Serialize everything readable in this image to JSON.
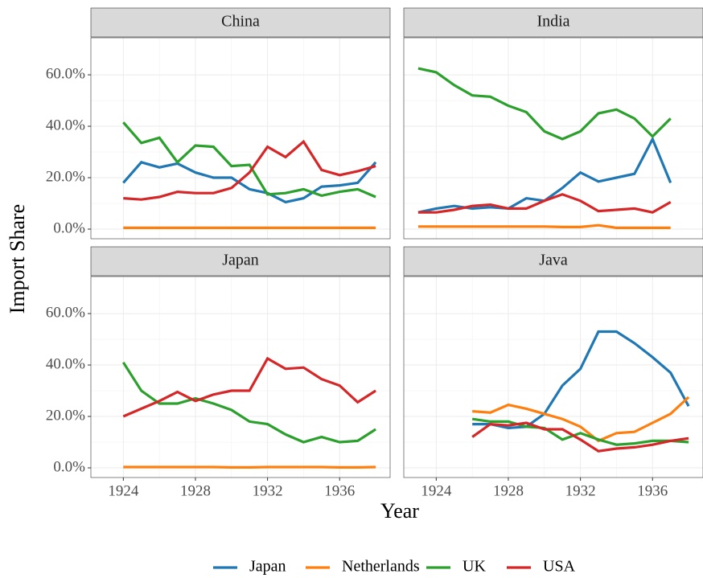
{
  "chart_data": {
    "type": "line",
    "xlabel": "Year",
    "ylabel": "Import Share",
    "xlim": [
      1922.2,
      1938.8
    ],
    "xticks": [
      1924,
      1928,
      1932,
      1936
    ],
    "ylim": [
      -3.75,
      74.4
    ],
    "yticks": [
      {
        "value": 0,
        "label": "0.0%"
      },
      {
        "value": 20,
        "label": "20.0%"
      },
      {
        "value": 40,
        "label": "40.0%"
      },
      {
        "value": 60,
        "label": "60.0%"
      }
    ],
    "grid": true,
    "legend": "bottom",
    "series": [
      {
        "name": "Japan",
        "color": "#1f77b4"
      },
      {
        "name": "Netherlands",
        "color": "#ff7f0e"
      },
      {
        "name": "UK",
        "color": "#2ca02c"
      },
      {
        "name": "USA",
        "color": "#d62728"
      }
    ],
    "panels": [
      {
        "title": "China",
        "x": [
          1924,
          1925,
          1926,
          1927,
          1928,
          1929,
          1930,
          1931,
          1932,
          1933,
          1934,
          1935,
          1936,
          1937,
          1938
        ],
        "values": [
          [
            18,
            26,
            24,
            25.5,
            22,
            20,
            20,
            15.5,
            14,
            10.5,
            12,
            16.5,
            17,
            18,
            26
          ],
          [
            0.5,
            0.5,
            0.5,
            0.5,
            0.5,
            0.5,
            0.5,
            0.5,
            0.5,
            0.5,
            0.5,
            0.5,
            0.5,
            0.5,
            0.5
          ],
          [
            41.5,
            33.5,
            35.5,
            26,
            32.5,
            32,
            24.5,
            25,
            13.5,
            14,
            15.5,
            13,
            14.5,
            15.5,
            12.5
          ],
          [
            12,
            11.5,
            12.5,
            14.5,
            14,
            14,
            16,
            22,
            32,
            28,
            34,
            23,
            21,
            22.5,
            24.5
          ]
        ]
      },
      {
        "title": "India",
        "x": [
          1923,
          1924,
          1925,
          1926,
          1927,
          1928,
          1929,
          1930,
          1931,
          1932,
          1933,
          1934,
          1935,
          1936,
          1937
        ],
        "values": [
          [
            6.5,
            8,
            9,
            8,
            8.5,
            8,
            12,
            11,
            16,
            22,
            18.5,
            20,
            21.5,
            35,
            18
          ],
          [
            1,
            1,
            1,
            1,
            1,
            1,
            1,
            1,
            0.8,
            0.8,
            1.5,
            0.5,
            0.5,
            0.5,
            0.5
          ],
          [
            62.5,
            61,
            56,
            52,
            51.5,
            48,
            45.5,
            38,
            35,
            38,
            45,
            46.5,
            43,
            36,
            43
          ],
          [
            6.5,
            6.5,
            7.5,
            9,
            9.5,
            8,
            8,
            11,
            13.5,
            11,
            7,
            7.5,
            8,
            6.5,
            10.5
          ]
        ]
      },
      {
        "title": "Japan",
        "x": [
          1924,
          1925,
          1926,
          1927,
          1928,
          1929,
          1930,
          1931,
          1932,
          1933,
          1934,
          1935,
          1936,
          1937,
          1938
        ],
        "values": [
          [
            null,
            null,
            null,
            null,
            null,
            null,
            null,
            null,
            null,
            null,
            null,
            null,
            null,
            null,
            null
          ],
          [
            0.3,
            0.3,
            0.3,
            0.3,
            0.3,
            0.3,
            0.2,
            0.2,
            0.3,
            0.3,
            0.3,
            0.3,
            0.2,
            0.2,
            0.3
          ],
          [
            41,
            30,
            25,
            25,
            27,
            25,
            22.5,
            18,
            17,
            13,
            10,
            12,
            10,
            10.5,
            15
          ],
          [
            20,
            23,
            26,
            29.5,
            26,
            28.5,
            30,
            30,
            42.5,
            38.5,
            39,
            34.5,
            32,
            25.5,
            30
          ]
        ]
      },
      {
        "title": "Java",
        "x": [
          1926,
          1927,
          1928,
          1929,
          1930,
          1931,
          1932,
          1933,
          1934,
          1935,
          1936,
          1937,
          1938
        ],
        "values": [
          [
            17,
            17,
            15.5,
            16,
            21,
            32,
            38.5,
            53,
            53,
            48.5,
            43,
            37,
            24
          ],
          [
            22,
            21.5,
            24.5,
            23,
            21,
            19,
            16,
            10.5,
            13.5,
            14,
            17.5,
            21,
            27.5
          ],
          [
            19,
            18,
            18,
            16,
            15.5,
            11,
            13.5,
            11,
            9,
            9.5,
            10.5,
            10.5,
            10
          ],
          [
            12,
            17,
            16.5,
            17.5,
            15,
            15,
            11,
            6.5,
            7.5,
            8,
            9,
            10.5,
            11.5
          ]
        ]
      }
    ]
  }
}
